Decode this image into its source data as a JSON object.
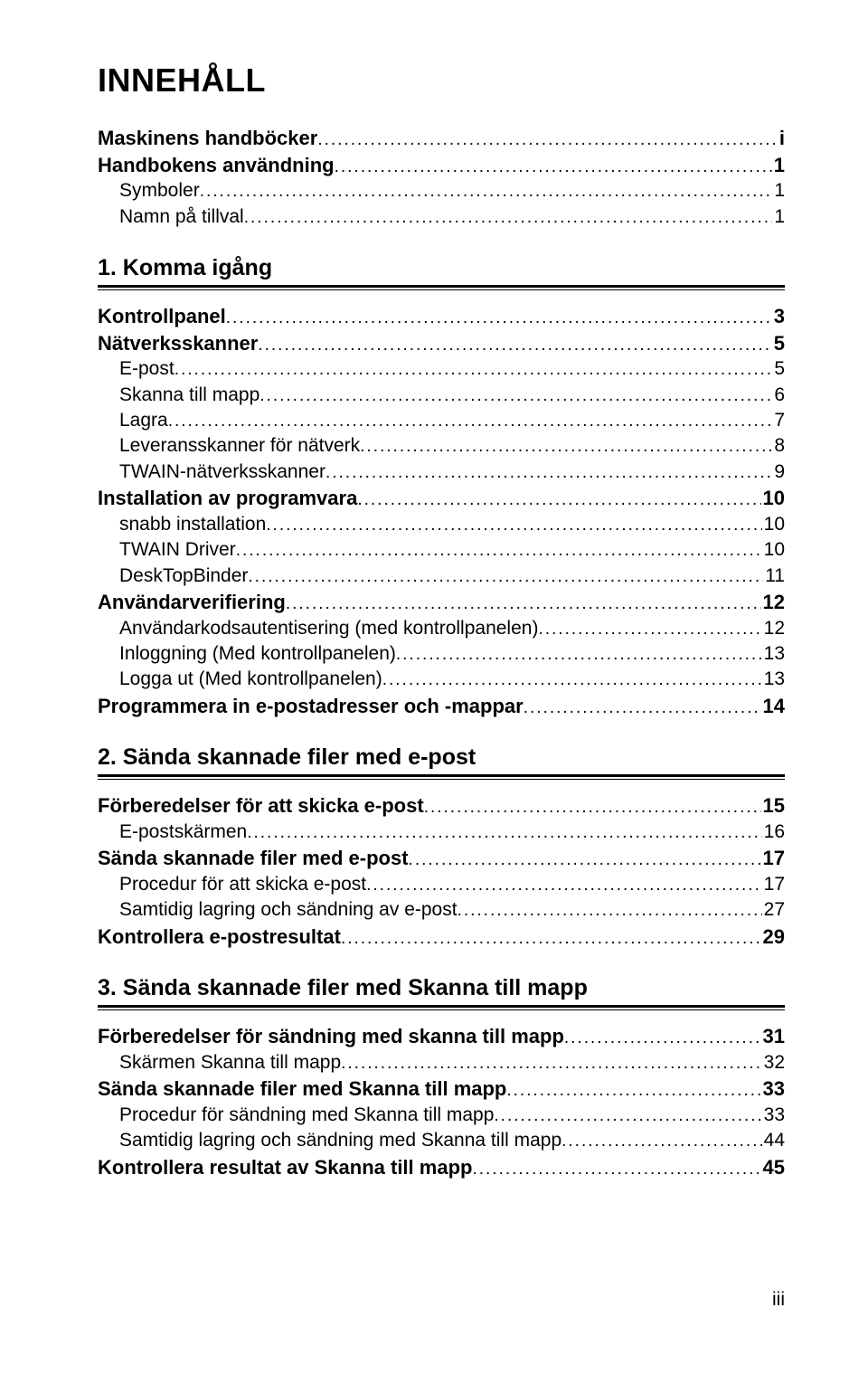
{
  "title": "INNEHÅLL",
  "intro_lines": [
    {
      "label": "Maskinens handböcker",
      "page": "i",
      "bold": true
    },
    {
      "label": "Handbokens användning",
      "page": "1",
      "bold": true
    },
    {
      "label": "Symboler",
      "page": "1",
      "bold": false
    },
    {
      "label": "Namn på tillval",
      "page": "1",
      "bold": false
    }
  ],
  "sections": [
    {
      "heading": "1. Komma igång",
      "lines": [
        {
          "label": "Kontrollpanel",
          "page": "3",
          "bold": true
        },
        {
          "label": "Nätverksskanner",
          "page": "5",
          "bold": true
        },
        {
          "label": "E-post",
          "page": "5",
          "bold": false
        },
        {
          "label": "Skanna till mapp",
          "page": "6",
          "bold": false
        },
        {
          "label": "Lagra",
          "page": "7",
          "bold": false
        },
        {
          "label": "Leveransskanner för nätverk",
          "page": "8",
          "bold": false
        },
        {
          "label": "TWAIN-nätverksskanner",
          "page": "9",
          "bold": false
        },
        {
          "label": "Installation av programvara",
          "page": "10",
          "bold": true
        },
        {
          "label": "snabb installation",
          "page": "10",
          "bold": false
        },
        {
          "label": "TWAIN Driver",
          "page": "10",
          "bold": false
        },
        {
          "label": "DeskTopBinder",
          "page": "11",
          "bold": false
        },
        {
          "label": "Användarverifiering",
          "page": "12",
          "bold": true
        },
        {
          "label": "Användarkodsautentisering (med kontrollpanelen)",
          "page": "12",
          "bold": false
        },
        {
          "label": "Inloggning (Med kontrollpanelen)",
          "page": "13",
          "bold": false
        },
        {
          "label": "Logga ut (Med kontrollpanelen)",
          "page": "13",
          "bold": false
        },
        {
          "label": "Programmera in e-postadresser och -mappar",
          "page": "14",
          "bold": true
        }
      ]
    },
    {
      "heading": "2. Sända skannade filer med e-post",
      "lines": [
        {
          "label": "Förberedelser för att skicka e-post",
          "page": "15",
          "bold": true
        },
        {
          "label": "E-postskärmen",
          "page": "16",
          "bold": false
        },
        {
          "label": "Sända skannade filer med e-post",
          "page": "17",
          "bold": true
        },
        {
          "label": "Procedur för att skicka e-post",
          "page": "17",
          "bold": false
        },
        {
          "label": "Samtidig lagring och sändning av e-post",
          "page": "27",
          "bold": false
        },
        {
          "label": "Kontrollera e-postresultat",
          "page": "29",
          "bold": true
        }
      ]
    },
    {
      "heading": "3. Sända skannade filer med Skanna till mapp",
      "lines": [
        {
          "label": "Förberedelser för sändning med skanna till mapp",
          "page": "31",
          "bold": true
        },
        {
          "label": "Skärmen Skanna till mapp",
          "page": "32",
          "bold": false
        },
        {
          "label": "Sända skannade filer med Skanna till mapp",
          "page": "33",
          "bold": true
        },
        {
          "label": "Procedur för sändning med Skanna till mapp",
          "page": "33",
          "bold": false
        },
        {
          "label": "Samtidig lagring och sändning med Skanna till mapp",
          "page": "44",
          "bold": false
        },
        {
          "label": "Kontrollera resultat av Skanna till mapp",
          "page": "45",
          "bold": true
        }
      ]
    }
  ],
  "footer": "iii"
}
